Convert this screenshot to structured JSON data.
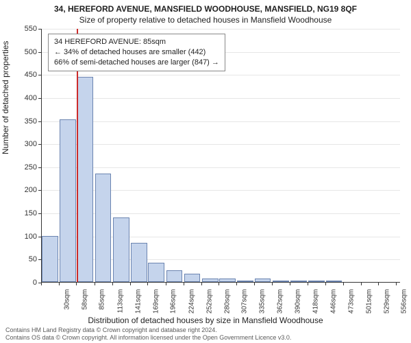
{
  "title_line1": "34, HEREFORD AVENUE, MANSFIELD WOODHOUSE, MANSFIELD, NG19 8QF",
  "title_line2": "Size of property relative to detached houses in Mansfield Woodhouse",
  "y_axis_label": "Number of detached properties",
  "x_axis_label": "Distribution of detached houses by size in Mansfield Woodhouse",
  "footer_line1": "Contains HM Land Registry data © Crown copyright and database right 2024.",
  "footer_line2": "Contains OS data © Crown copyright. All information licensed under the Open Government Licence v3.0.",
  "chart": {
    "type": "histogram",
    "ylim": [
      0,
      550
    ],
    "ytick_step": 50,
    "bar_fill": "#c5d4ec",
    "bar_border": "#6b84b0",
    "highlight_color": "#cc2a2a",
    "highlight_x_value": 85,
    "background_color": "#ffffff",
    "grid_color": "#333333",
    "grid_opacity": 0.12,
    "x_range": [
      30,
      590
    ],
    "bars": [
      {
        "x": 30,
        "label": "30sqm",
        "value": 100
      },
      {
        "x": 58,
        "label": "58sqm",
        "value": 352
      },
      {
        "x": 85,
        "label": "85sqm",
        "value": 445
      },
      {
        "x": 113,
        "label": "113sqm",
        "value": 235
      },
      {
        "x": 141,
        "label": "141sqm",
        "value": 140
      },
      {
        "x": 169,
        "label": "169sqm",
        "value": 85
      },
      {
        "x": 196,
        "label": "196sqm",
        "value": 42
      },
      {
        "x": 224,
        "label": "224sqm",
        "value": 25
      },
      {
        "x": 252,
        "label": "252sqm",
        "value": 18
      },
      {
        "x": 280,
        "label": "280sqm",
        "value": 8
      },
      {
        "x": 307,
        "label": "307sqm",
        "value": 8
      },
      {
        "x": 335,
        "label": "335sqm",
        "value": 2
      },
      {
        "x": 362,
        "label": "362sqm",
        "value": 8
      },
      {
        "x": 390,
        "label": "390sqm",
        "value": 2
      },
      {
        "x": 418,
        "label": "418sqm",
        "value": 1
      },
      {
        "x": 446,
        "label": "446sqm",
        "value": 1
      },
      {
        "x": 473,
        "label": "473sqm",
        "value": 1
      },
      {
        "x": 501,
        "label": "501sqm",
        "value": 0
      },
      {
        "x": 529,
        "label": "529sqm",
        "value": 0
      },
      {
        "x": 556,
        "label": "556sqm",
        "value": 0
      },
      {
        "x": 584,
        "label": "584sqm",
        "value": 0
      }
    ]
  },
  "info_box": {
    "line1": "34 HEREFORD AVENUE: 85sqm",
    "line2": "← 34% of detached houses are smaller (442)",
    "line3": "66% of semi-detached houses are larger (847) →"
  }
}
